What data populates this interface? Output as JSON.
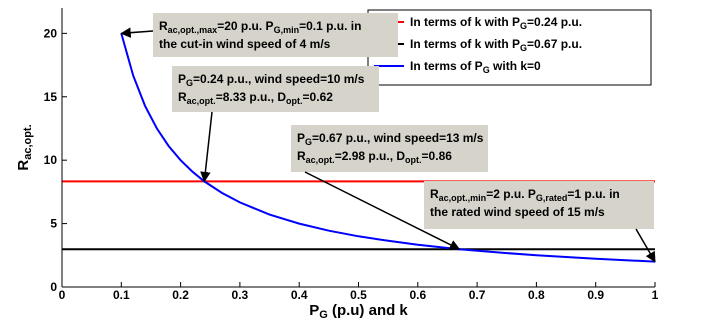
{
  "chart_data": {
    "type": "line",
    "xlim": [
      0,
      1
    ],
    "ylim": [
      0,
      22
    ],
    "x_ticks": [
      0,
      0.1,
      0.2,
      0.3,
      0.4,
      0.5,
      0.6,
      0.7,
      0.8,
      0.9,
      1
    ],
    "x_tick_labels": [
      "0",
      "0.1",
      "0.2",
      "0.3",
      "0.4",
      "0.5",
      "0.6",
      "0.7",
      "0.8",
      "0.9",
      "1"
    ],
    "y_ticks": [
      0,
      5,
      10,
      15,
      20
    ],
    "y_tick_labels": [
      "0",
      "5",
      "10",
      "15",
      "20"
    ],
    "xlabel": {
      "main": "P",
      "sub": "G",
      "rest": " (p.u) and k"
    },
    "ylabel": {
      "main": "R",
      "sub": "ac,opt."
    },
    "grid": false,
    "legend_position": "top-right",
    "series": [
      {
        "name": {
          "pre": "In terms of k with P",
          "sub": "G",
          "post": "=0.24 p.u."
        },
        "color": "#ff0000",
        "x": [
          0,
          1
        ],
        "y": [
          8.33,
          8.33
        ]
      },
      {
        "name": {
          "pre": "In terms of k with P",
          "sub": "G",
          "post": "=0.67 p.u."
        },
        "color": "#000000",
        "x": [
          0,
          1
        ],
        "y": [
          2.98,
          2.98
        ]
      },
      {
        "name": {
          "pre": "In terms of P",
          "sub": "G",
          "post": " with k=0"
        },
        "color": "#0000ff",
        "x": [
          0.1,
          0.12,
          0.14,
          0.16,
          0.18,
          0.2,
          0.22,
          0.24,
          0.27,
          0.3,
          0.35,
          0.4,
          0.45,
          0.5,
          0.55,
          0.6,
          0.67,
          0.75,
          0.8,
          0.9,
          1.0
        ],
        "y": [
          20,
          16.67,
          14.29,
          12.5,
          11.11,
          10,
          9.09,
          8.33,
          7.41,
          6.67,
          5.71,
          5,
          4.44,
          4,
          3.64,
          3.33,
          2.98,
          2.67,
          2.5,
          2.22,
          2
        ]
      }
    ],
    "annotations": [
      {
        "id": "max",
        "lines": [
          [
            {
              "t": "R"
            },
            {
              "t": "ac,opt.,max",
              "s": 1
            },
            {
              "t": "=20 p.u. P"
            },
            {
              "t": "G,min",
              "s": 1
            },
            {
              "t": "=0.1 p.u. in"
            }
          ],
          [
            {
              "t": "the cut-in wind speed of 4 m/s"
            }
          ]
        ],
        "point": [
          0.1,
          20
        ]
      },
      {
        "id": "pg024",
        "lines": [
          [
            {
              "t": "P"
            },
            {
              "t": "G",
              "s": 1
            },
            {
              "t": "=0.24 p.u., wind speed=10 m/s"
            }
          ],
          [
            {
              "t": "R"
            },
            {
              "t": "ac,opt.",
              "s": 1
            },
            {
              "t": "=8.33 p.u., D"
            },
            {
              "t": "opt.",
              "s": 1
            },
            {
              "t": "=0.62"
            }
          ]
        ],
        "point": [
          0.24,
          8.33
        ]
      },
      {
        "id": "pg067",
        "lines": [
          [
            {
              "t": "P"
            },
            {
              "t": "G",
              "s": 1
            },
            {
              "t": "=0.67 p.u., wind speed=13 m/s"
            }
          ],
          [
            {
              "t": "R"
            },
            {
              "t": "ac,opt.",
              "s": 1
            },
            {
              "t": "=2.98 p.u., D"
            },
            {
              "t": "opt.",
              "s": 1
            },
            {
              "t": "=0.86"
            }
          ]
        ],
        "point": [
          0.67,
          2.98
        ]
      },
      {
        "id": "min",
        "lines": [
          [
            {
              "t": "R"
            },
            {
              "t": "ac,opt.,min",
              "s": 1
            },
            {
              "t": "=2 p.u. P"
            },
            {
              "t": "G,rated",
              "s": 1
            },
            {
              "t": "=1 p.u. in"
            }
          ],
          [
            {
              "t": "the rated wind speed of 15 m/s"
            }
          ]
        ],
        "point": [
          1.0,
          2
        ]
      }
    ]
  },
  "colors": {
    "annotation_box": "#d6d3ca",
    "axis": "#000000"
  }
}
